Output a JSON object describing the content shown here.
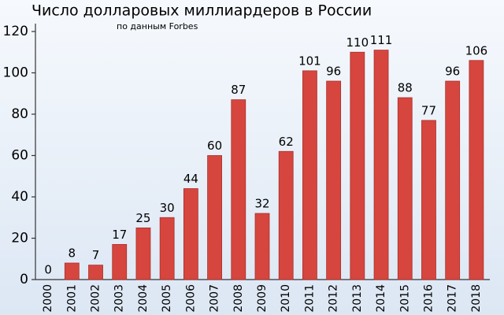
{
  "chart_data": {
    "type": "bar",
    "title": "Число долларовых миллиардеров в России",
    "subtitle": "по данным Forbes",
    "categories": [
      "2000",
      "2001",
      "2002",
      "2003",
      "2004",
      "2005",
      "2006",
      "2007",
      "2008",
      "2009",
      "2010",
      "2011",
      "2012",
      "2013",
      "2014",
      "2015",
      "2016",
      "2017",
      "2018"
    ],
    "values": [
      0,
      8,
      7,
      17,
      25,
      30,
      44,
      60,
      87,
      32,
      62,
      101,
      96,
      110,
      111,
      88,
      77,
      96,
      106
    ],
    "color": "#d6463e",
    "ylim": [
      0,
      120
    ],
    "yticks": [
      0,
      20,
      40,
      60,
      80,
      100,
      120
    ],
    "grid": false
  }
}
